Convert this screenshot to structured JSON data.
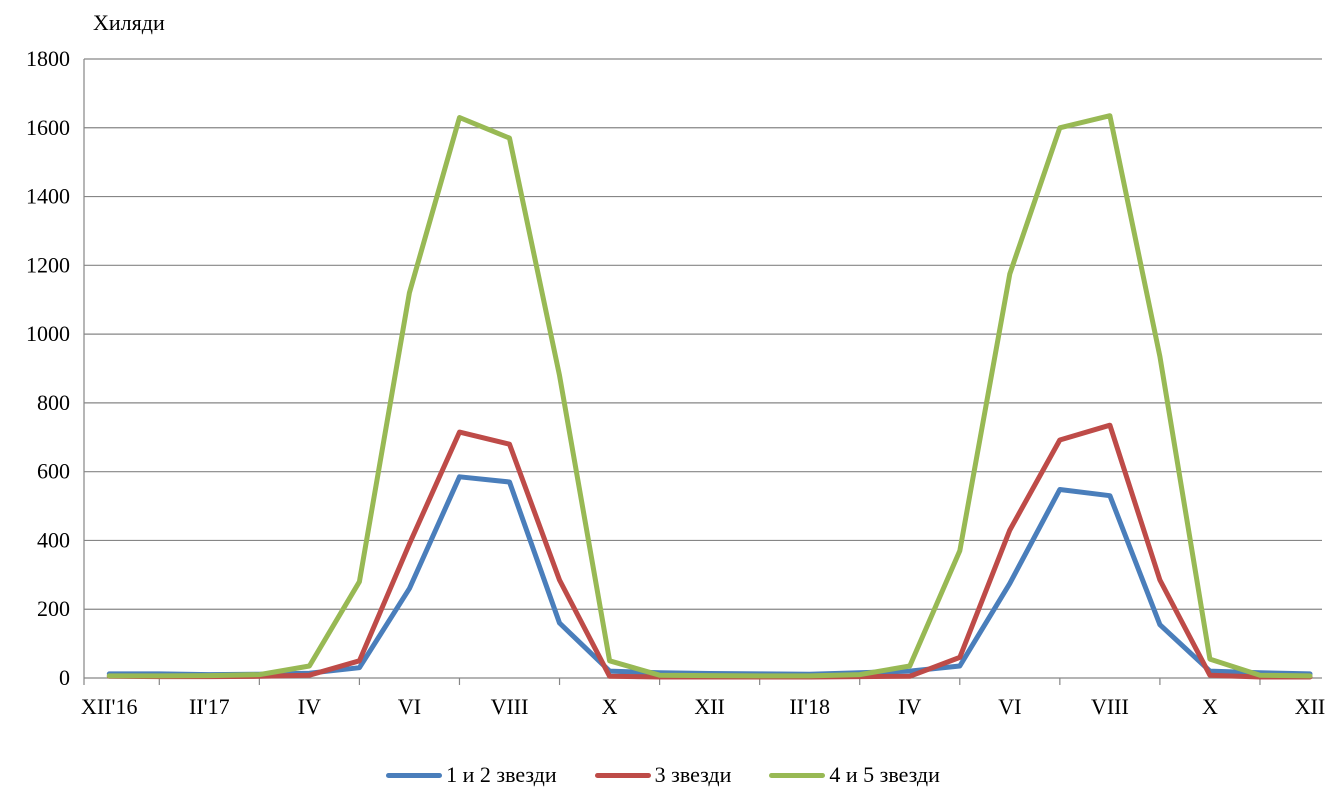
{
  "chart_data": {
    "type": "line",
    "ylabel": "Хиляди",
    "ylim": [
      0,
      1800
    ],
    "yticks": [
      0,
      200,
      400,
      600,
      800,
      1000,
      1200,
      1400,
      1600,
      1800
    ],
    "grid": true,
    "legend_position": "bottom",
    "x_tick_labels": [
      {
        "index": 0,
        "label": "XII'16"
      },
      {
        "index": 2,
        "label": "II'17"
      },
      {
        "index": 4,
        "label": "IV"
      },
      {
        "index": 6,
        "label": "VI"
      },
      {
        "index": 8,
        "label": "VIII"
      },
      {
        "index": 10,
        "label": "X"
      },
      {
        "index": 12,
        "label": "XII"
      },
      {
        "index": 14,
        "label": "II'18"
      },
      {
        "index": 16,
        "label": "IV"
      },
      {
        "index": 18,
        "label": "VI"
      },
      {
        "index": 20,
        "label": "VIII"
      },
      {
        "index": 22,
        "label": "X"
      },
      {
        "index": 24,
        "label": "XII"
      }
    ],
    "series": [
      {
        "name": "1 и 2 звезди",
        "color": "#4a7ebb",
        "values": [
          12,
          12,
          10,
          11,
          14,
          30,
          260,
          585,
          570,
          160,
          20,
          15,
          13,
          12,
          11,
          15,
          20,
          35,
          275,
          548,
          530,
          155,
          20,
          15,
          12
        ]
      },
      {
        "name": "3 звезди",
        "color": "#be4b48",
        "values": [
          5,
          4,
          4,
          5,
          8,
          50,
          390,
          715,
          680,
          285,
          5,
          3,
          3,
          3,
          3,
          4,
          5,
          60,
          430,
          692,
          735,
          285,
          8,
          3,
          3
        ]
      },
      {
        "name": "4 и 5 звезди",
        "color": "#98b954",
        "values": [
          6,
          6,
          7,
          10,
          35,
          280,
          1120,
          1630,
          1570,
          880,
          50,
          8,
          7,
          6,
          6,
          10,
          35,
          370,
          1175,
          1600,
          1635,
          935,
          55,
          8,
          6
        ]
      }
    ]
  }
}
